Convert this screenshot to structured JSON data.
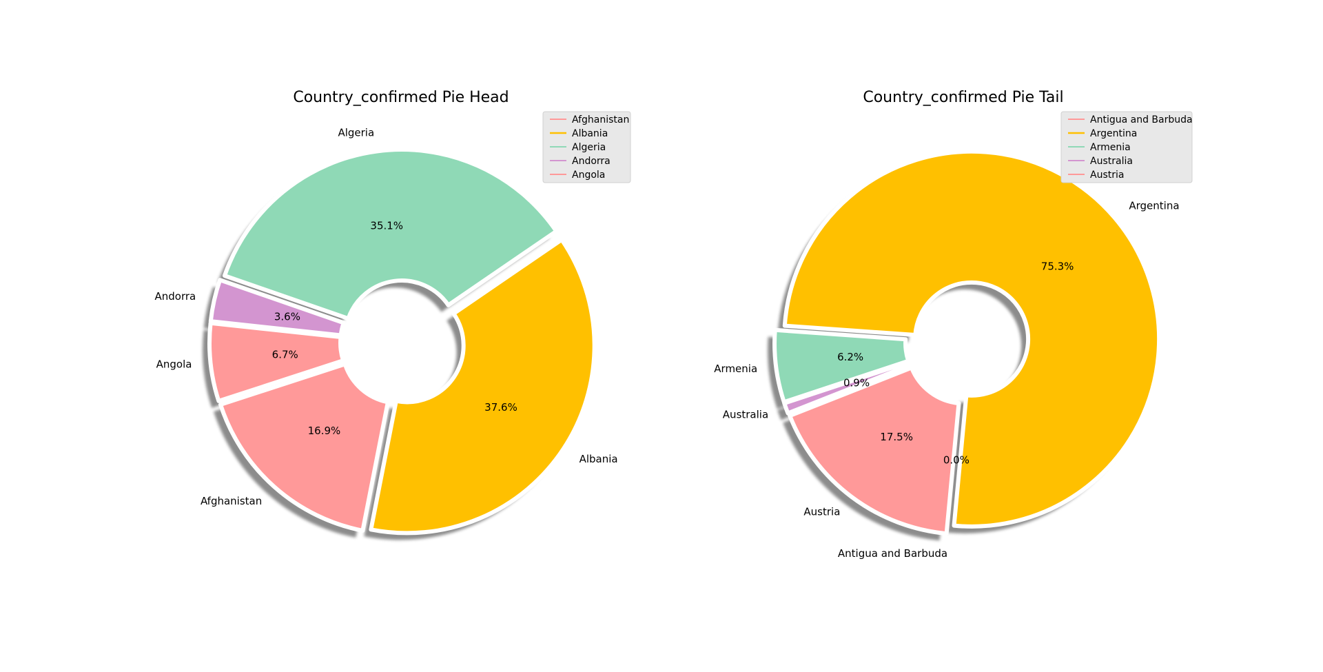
{
  "figure": {
    "background": "#ffffff"
  },
  "chart_data": [
    {
      "type": "pie",
      "title": "Country_confirmed Pie Head",
      "categories": [
        "Afghanistan",
        "Albania",
        "Algeria",
        "Andorra",
        "Angola"
      ],
      "values": [
        16.9,
        37.6,
        35.1,
        3.6,
        6.7
      ],
      "pct_labels": [
        "16.9%",
        "37.6%",
        "35.1%",
        "3.6%",
        "6.7%"
      ],
      "colors": [
        "#ff9999",
        "#ffc000",
        "#8fd9b6",
        "#d395d0",
        "#ff9999"
      ],
      "legend": {
        "placement": "top-right",
        "entries": [
          "Afghanistan",
          "Albania",
          "Algeria",
          "Andorra",
          "Angola"
        ]
      },
      "donut": true,
      "shadow": true
    },
    {
      "type": "pie",
      "title": "Country_confirmed Pie Tail",
      "categories": [
        "Antigua and Barbuda",
        "Argentina",
        "Armenia",
        "Australia",
        "Austria"
      ],
      "values": [
        0.0,
        75.3,
        6.2,
        0.9,
        17.5
      ],
      "pct_labels": [
        "0.0%",
        "75.3%",
        "6.2%",
        "0.9%",
        "17.5%"
      ],
      "colors": [
        "#ff9999",
        "#ffc000",
        "#8fd9b6",
        "#d395d0",
        "#ff9999"
      ],
      "legend": {
        "placement": "top-right",
        "entries": [
          "Antigua and Barbuda",
          "Argentina",
          "Armenia",
          "Australia",
          "Austria"
        ]
      },
      "donut": true,
      "shadow": true
    }
  ]
}
